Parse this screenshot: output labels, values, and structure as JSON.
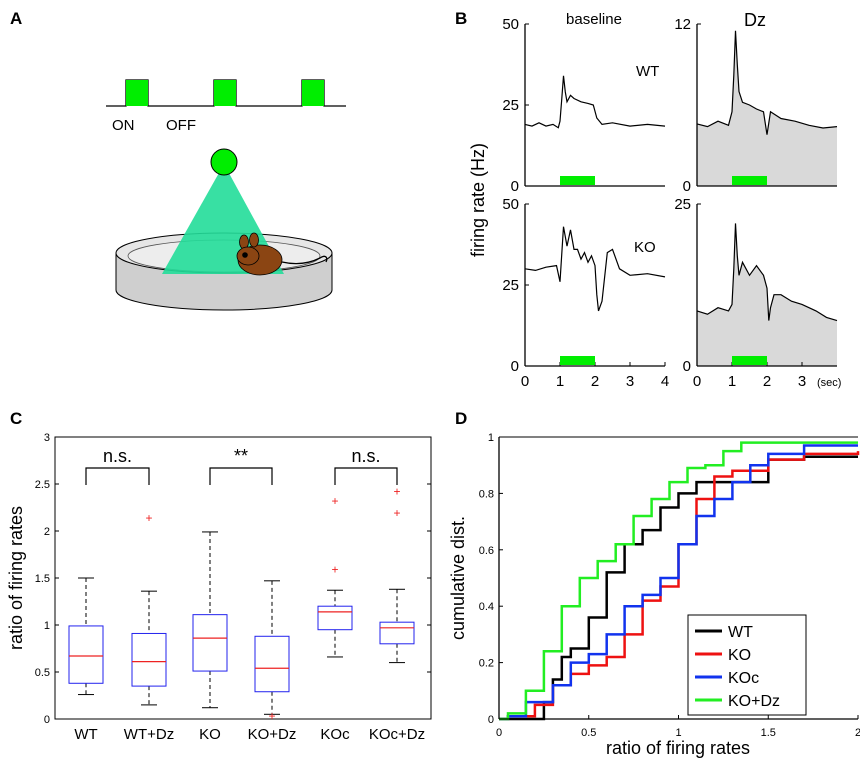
{
  "panel_letters": {
    "a": "A",
    "b": "B",
    "c": "C",
    "d": "D"
  },
  "panel_a": {
    "on_label": "ON",
    "off_label": "OFF"
  },
  "colors": {
    "stim_green": "#00ee00",
    "light_cone": "#22dd99",
    "shade": "#d9d9d9",
    "wt": "#000000",
    "ko": "#ee1111",
    "koc": "#1133ee",
    "kodz": "#22ee22",
    "box_blue": "#2222ee",
    "median_red": "#ee2222",
    "mouse_brown": "#8b4513"
  },
  "chart_data": [
    {
      "type": "line",
      "panel": "B-baseline-WT",
      "title": "baseline",
      "trace_label": "WT",
      "ylabel": "firing rate (Hz)",
      "xlim": [
        0,
        4
      ],
      "ylim": [
        0,
        50
      ],
      "yticks": [
        "0",
        "25",
        "50"
      ],
      "stimulus": [
        1,
        2
      ],
      "x": [
        0,
        0.2,
        0.4,
        0.6,
        0.8,
        0.95,
        1.0,
        1.05,
        1.1,
        1.15,
        1.2,
        1.3,
        1.4,
        1.6,
        1.8,
        1.95,
        2.05,
        2.2,
        2.5,
        3.0,
        3.5,
        4.0
      ],
      "values": [
        19,
        18.5,
        19.5,
        18.5,
        19,
        18,
        20,
        27,
        34,
        29,
        26,
        28,
        27,
        26,
        25.5,
        25,
        21,
        19,
        19.5,
        18.5,
        19,
        18.5
      ]
    },
    {
      "type": "area",
      "panel": "B-Dz-WT",
      "title": "Dz",
      "xlim": [
        0,
        4
      ],
      "ylim": [
        0,
        12
      ],
      "yticks": [
        "0",
        "12"
      ],
      "stimulus": [
        1,
        2
      ],
      "x": [
        0,
        0.3,
        0.6,
        0.9,
        1.0,
        1.05,
        1.1,
        1.15,
        1.2,
        1.3,
        1.5,
        1.7,
        1.9,
        2.0,
        2.1,
        2.4,
        2.8,
        3.2,
        3.6,
        4.0
      ],
      "values": [
        4.6,
        4.4,
        4.8,
        4.5,
        5.5,
        8.2,
        11.5,
        9.0,
        7.0,
        6.2,
        6.0,
        5.7,
        5.5,
        3.8,
        5.5,
        5.0,
        4.8,
        4.5,
        4.3,
        4.4
      ]
    },
    {
      "type": "line",
      "panel": "B-baseline-KO",
      "trace_label": "KO",
      "xlim": [
        0,
        4
      ],
      "ylim": [
        0,
        50
      ],
      "yticks": [
        "0",
        "25",
        "50"
      ],
      "xlabel_ticks": [
        "0",
        "1",
        "2",
        "3",
        "4"
      ],
      "stimulus": [
        1,
        2
      ],
      "x": [
        0,
        0.3,
        0.6,
        0.9,
        1.0,
        1.1,
        1.2,
        1.3,
        1.4,
        1.5,
        1.6,
        1.7,
        1.8,
        1.9,
        2.0,
        2.05,
        2.1,
        2.2,
        2.35,
        2.5,
        2.7,
        3.0,
        3.5,
        4.0
      ],
      "values": [
        30,
        29.5,
        30.5,
        31,
        26,
        43,
        37,
        42,
        36,
        36,
        33,
        35,
        32,
        34,
        31,
        22,
        17,
        20,
        35,
        36,
        30,
        28,
        28.5,
        27.5
      ]
    },
    {
      "type": "area",
      "panel": "B-Dz-KO",
      "xlim": [
        0,
        4
      ],
      "ylim": [
        0,
        25
      ],
      "yticks": [
        "0",
        "25"
      ],
      "xlabel_ticks": [
        "0",
        "1",
        "2",
        "3"
      ],
      "x_unit": "(sec)",
      "stimulus": [
        1,
        2
      ],
      "x": [
        0,
        0.3,
        0.6,
        0.9,
        1.0,
        1.05,
        1.1,
        1.15,
        1.2,
        1.3,
        1.5,
        1.7,
        1.9,
        2.0,
        2.05,
        2.1,
        2.2,
        2.4,
        2.7,
        3.0,
        3.4,
        3.7,
        4.0
      ],
      "values": [
        8.5,
        8.0,
        9.0,
        8.5,
        9.5,
        15,
        22,
        17,
        14,
        16,
        14,
        15.5,
        14,
        12,
        7,
        9,
        11,
        11,
        10,
        9.5,
        8.5,
        7.5,
        7.0
      ]
    },
    {
      "type": "box",
      "panel": "C",
      "ylabel": "ratio of firing rates",
      "ylim": [
        0,
        3
      ],
      "yticks": [
        "0",
        "0.5",
        "1",
        "1.5",
        "2",
        "2.5",
        "3"
      ],
      "categories": [
        "WT",
        "WT+Dz",
        "KO",
        "KO+Dz",
        "KOc",
        "KOc+Dz"
      ],
      "boxes": [
        {
          "min": 0.26,
          "q1": 0.38,
          "median": 0.67,
          "q3": 0.99,
          "max": 1.5,
          "outliers": []
        },
        {
          "min": 0.15,
          "q1": 0.35,
          "median": 0.61,
          "q3": 0.91,
          "max": 1.36,
          "outliers": [
            2.14
          ]
        },
        {
          "min": 0.12,
          "q1": 0.51,
          "median": 0.86,
          "q3": 1.11,
          "max": 1.99,
          "outliers": []
        },
        {
          "min": 0.05,
          "q1": 0.29,
          "median": 0.54,
          "q3": 0.88,
          "max": 1.47,
          "outliers": [
            0.03
          ]
        },
        {
          "min": 0.66,
          "q1": 0.95,
          "median": 1.14,
          "q3": 1.2,
          "max": 1.37,
          "outliers": [
            1.59,
            2.32
          ]
        },
        {
          "min": 0.6,
          "q1": 0.8,
          "median": 0.97,
          "q3": 1.03,
          "max": 1.38,
          "outliers": [
            2.19,
            2.42
          ]
        }
      ],
      "significance": [
        {
          "between": [
            0,
            1
          ],
          "label": "n.s."
        },
        {
          "between": [
            2,
            3
          ],
          "label": "**"
        },
        {
          "between": [
            4,
            5
          ],
          "label": "n.s."
        }
      ]
    },
    {
      "type": "line",
      "panel": "D",
      "xlabel": "ratio of firing rates",
      "ylabel": "cumulative dist.",
      "xlim": [
        0,
        2
      ],
      "ylim": [
        0,
        1
      ],
      "xticks": [
        "0",
        "0.5",
        "1",
        "1.5",
        "2"
      ],
      "yticks": [
        "0",
        "0.2",
        "0.4",
        "0.6",
        "0.8",
        "1"
      ],
      "legend_position": "bottom-right",
      "series": [
        {
          "name": "WT",
          "color": "#000000",
          "x": [
            0,
            0.18,
            0.25,
            0.3,
            0.35,
            0.4,
            0.5,
            0.6,
            0.7,
            0.8,
            0.9,
            1.0,
            1.1,
            1.3,
            1.5,
            1.7,
            2.0
          ],
          "y": [
            0,
            0,
            0.06,
            0.14,
            0.22,
            0.25,
            0.36,
            0.52,
            0.62,
            0.67,
            0.75,
            0.8,
            0.84,
            0.84,
            0.92,
            0.93,
            0.93
          ]
        },
        {
          "name": "KO",
          "color": "#ee1111",
          "x": [
            0,
            0.05,
            0.2,
            0.3,
            0.4,
            0.5,
            0.6,
            0.7,
            0.8,
            0.9,
            1.0,
            1.1,
            1.2,
            1.3,
            1.5,
            1.7,
            2.0
          ],
          "y": [
            0,
            0.01,
            0.05,
            0.12,
            0.16,
            0.19,
            0.22,
            0.3,
            0.42,
            0.47,
            0.62,
            0.78,
            0.86,
            0.88,
            0.92,
            0.94,
            0.95
          ]
        },
        {
          "name": "KOc",
          "color": "#1133ee",
          "x": [
            0,
            0.05,
            0.15,
            0.3,
            0.4,
            0.5,
            0.6,
            0.7,
            0.8,
            0.9,
            1.0,
            1.1,
            1.2,
            1.3,
            1.4,
            1.5,
            1.7,
            2.0
          ],
          "y": [
            0,
            0.01,
            0.06,
            0.12,
            0.2,
            0.23,
            0.3,
            0.4,
            0.44,
            0.5,
            0.62,
            0.72,
            0.78,
            0.84,
            0.9,
            0.94,
            0.97,
            0.97
          ]
        },
        {
          "name": "KO+Dz",
          "color": "#22ee22",
          "x": [
            0,
            0.05,
            0.15,
            0.25,
            0.35,
            0.45,
            0.55,
            0.65,
            0.75,
            0.85,
            0.95,
            1.05,
            1.15,
            1.25,
            1.35,
            1.5,
            2.0
          ],
          "y": [
            0,
            0.02,
            0.1,
            0.24,
            0.4,
            0.5,
            0.56,
            0.62,
            0.72,
            0.78,
            0.84,
            0.89,
            0.9,
            0.95,
            0.98,
            0.98,
            0.98
          ]
        }
      ]
    }
  ]
}
